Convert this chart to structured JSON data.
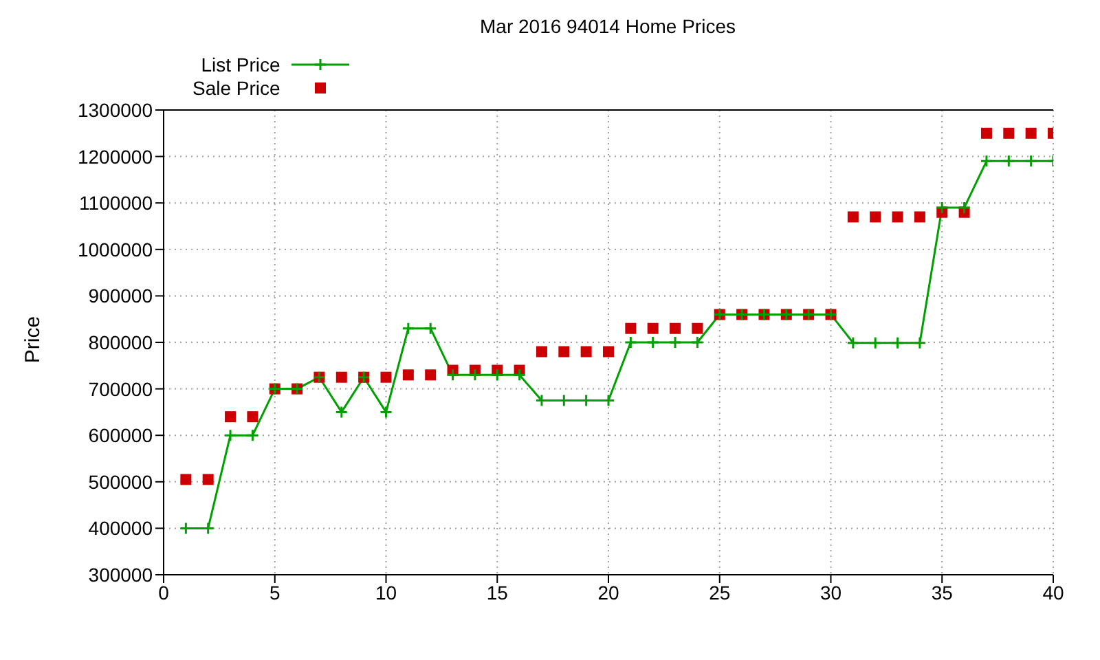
{
  "chart_data": {
    "type": "line",
    "title": "Mar 2016 94014 Home Prices",
    "ylabel": "Price",
    "x": [
      1,
      2,
      3,
      4,
      5,
      6,
      7,
      8,
      9,
      10,
      11,
      12,
      13,
      14,
      15,
      16,
      17,
      18,
      19,
      20,
      21,
      22,
      23,
      24,
      25,
      26,
      27,
      28,
      29,
      30,
      31,
      32,
      33,
      34,
      35,
      36,
      37,
      38,
      39,
      40
    ],
    "series": [
      {
        "name": "List Price",
        "type": "line",
        "color": "#00a000",
        "marker": "cross",
        "values": [
          400000,
          400000,
          600000,
          600000,
          700000,
          700000,
          725000,
          650000,
          725000,
          650000,
          830000,
          830000,
          730000,
          730000,
          730000,
          730000,
          675000,
          675000,
          675000,
          675000,
          800000,
          800000,
          800000,
          800000,
          860000,
          860000,
          860000,
          860000,
          860000,
          860000,
          799000,
          799000,
          799000,
          799000,
          1090000,
          1090000,
          1190000,
          1190000,
          1190000,
          1190000
        ]
      },
      {
        "name": "Sale Price",
        "type": "scatter",
        "color": "#cc0000",
        "marker": "square",
        "values": [
          505000,
          505000,
          640000,
          640000,
          700000,
          700000,
          725000,
          725000,
          725000,
          725000,
          730000,
          730000,
          740000,
          740000,
          740000,
          740000,
          780000,
          780000,
          780000,
          780000,
          830000,
          830000,
          830000,
          830000,
          860000,
          860000,
          860000,
          860000,
          860000,
          860000,
          1070000,
          1070000,
          1070000,
          1070000,
          1080000,
          1080000,
          1250000,
          1250000,
          1250000,
          1250000
        ]
      }
    ],
    "xlim": [
      0,
      40
    ],
    "xticks": [
      0,
      5,
      10,
      15,
      20,
      25,
      30,
      35,
      40
    ],
    "ylim": [
      300000,
      1300000
    ],
    "yticks": [
      300000,
      400000,
      500000,
      600000,
      700000,
      800000,
      900000,
      1000000,
      1100000,
      1200000,
      1300000
    ],
    "grid": true,
    "legend": "top left"
  }
}
